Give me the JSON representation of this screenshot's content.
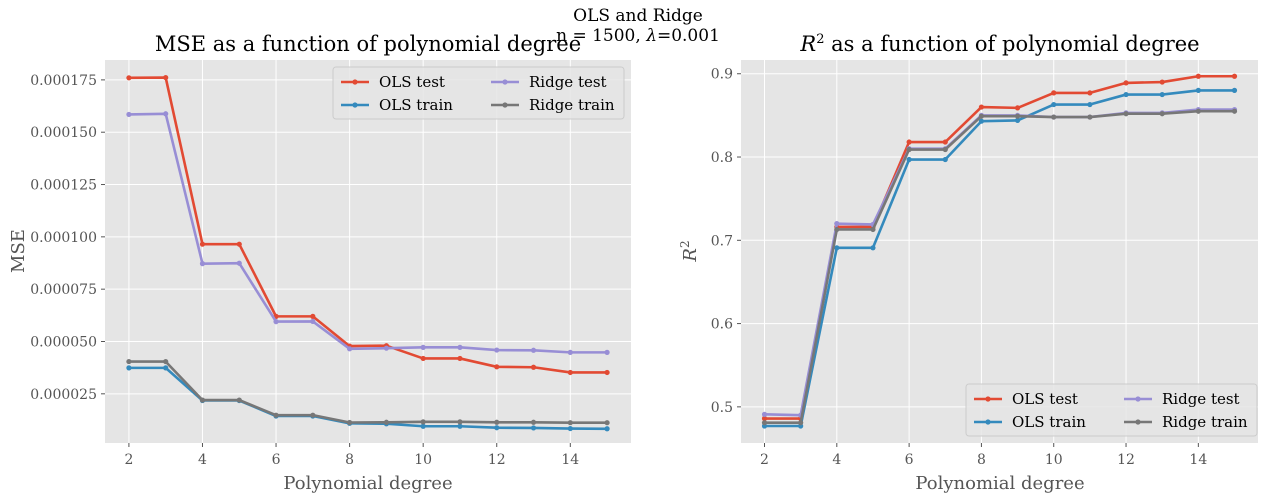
{
  "figure": {
    "suptitle": "OLS and Ridge",
    "subtitle_prefix": "n = 1500, ",
    "subtitle_lambda": "λ",
    "subtitle_value": "=0.001"
  },
  "chart_data": [
    {
      "type": "line",
      "title": "MSE as a function of polynomial degree",
      "xlabel": "Polynomial degree",
      "ylabel": "MSE",
      "xlim": [
        1.35,
        15.65
      ],
      "ylim": [
        1.5e-06,
        0.0001845
      ],
      "xticks": [
        2,
        4,
        6,
        8,
        10,
        12,
        14
      ],
      "yticks": [
        2.5e-05,
        5e-05,
        7.5e-05,
        0.0001,
        0.000125,
        0.00015,
        0.000175
      ],
      "ytick_labels": [
        "0.000025",
        "0.000050",
        "0.000075",
        "0.000100",
        "0.000125",
        "0.000150",
        "0.000175"
      ],
      "grid": true,
      "legend": {
        "placement": "top-right",
        "columns": 2
      },
      "x": [
        2,
        3,
        4,
        5,
        6,
        7,
        8,
        9,
        10,
        11,
        12,
        13,
        14,
        15
      ],
      "series": [
        {
          "name": "OLS test",
          "color": "#E24A33",
          "values": [
            0.000176,
            0.0001761,
            9.65e-05,
            9.65e-05,
            6.2e-05,
            6.2e-05,
            4.78e-05,
            4.8e-05,
            4.19e-05,
            4.19e-05,
            3.79e-05,
            3.77e-05,
            3.52e-05,
            3.52e-05
          ]
        },
        {
          "name": "OLS train",
          "color": "#348ABD",
          "values": [
            3.74e-05,
            3.74e-05,
            2.18e-05,
            2.18e-05,
            1.44e-05,
            1.44e-05,
            1.09e-05,
            1.07e-05,
            9.5e-06,
            9.5e-06,
            8.8e-06,
            8.7e-06,
            8.4e-06,
            8.3e-06
          ]
        },
        {
          "name": "Ridge test",
          "color": "#988ED5",
          "values": [
            0.0001585,
            0.0001588,
            8.72e-05,
            8.74e-05,
            5.95e-05,
            5.96e-05,
            4.65e-05,
            4.68e-05,
            4.72e-05,
            4.72e-05,
            4.59e-05,
            4.58e-05,
            4.48e-05,
            4.48e-05
          ]
        },
        {
          "name": "Ridge train",
          "color": "#777777",
          "values": [
            4.04e-05,
            4.04e-05,
            2.2e-05,
            2.2e-05,
            1.48e-05,
            1.48e-05,
            1.13e-05,
            1.14e-05,
            1.16e-05,
            1.16e-05,
            1.14e-05,
            1.14e-05,
            1.12e-05,
            1.12e-05
          ]
        }
      ]
    },
    {
      "type": "line",
      "title_main": "R",
      "title_sup": "2",
      "title_rest": " as a function of polynomial degree",
      "xlabel": "Polynomial degree",
      "ylabel_main": "R",
      "ylabel_sup": "2",
      "xlim": [
        1.35,
        15.65
      ],
      "ylim": [
        0.4566,
        0.9165
      ],
      "xticks": [
        2,
        4,
        6,
        8,
        10,
        12,
        14
      ],
      "yticks": [
        0.5,
        0.6,
        0.7,
        0.8,
        0.9
      ],
      "ytick_labels": [
        "0.5",
        "0.6",
        "0.7",
        "0.8",
        "0.9"
      ],
      "grid": true,
      "legend": {
        "placement": "bottom-right",
        "columns": 2
      },
      "x": [
        2,
        3,
        4,
        5,
        6,
        7,
        8,
        9,
        10,
        11,
        12,
        13,
        14,
        15
      ],
      "series": [
        {
          "name": "OLS test",
          "color": "#E24A33",
          "values": [
            0.486,
            0.486,
            0.716,
            0.716,
            0.818,
            0.818,
            0.86,
            0.859,
            0.877,
            0.877,
            0.889,
            0.89,
            0.897,
            0.897
          ]
        },
        {
          "name": "OLS train",
          "color": "#348ABD",
          "values": [
            0.477,
            0.477,
            0.691,
            0.691,
            0.797,
            0.797,
            0.843,
            0.844,
            0.863,
            0.863,
            0.875,
            0.875,
            0.88,
            0.88
          ]
        },
        {
          "name": "Ridge test",
          "color": "#988ED5",
          "values": [
            0.491,
            0.49,
            0.72,
            0.719,
            0.81,
            0.81,
            0.85,
            0.85,
            0.848,
            0.848,
            0.853,
            0.853,
            0.857,
            0.857
          ]
        },
        {
          "name": "Ridge train",
          "color": "#777777",
          "values": [
            0.481,
            0.481,
            0.713,
            0.713,
            0.809,
            0.809,
            0.849,
            0.849,
            0.848,
            0.848,
            0.852,
            0.852,
            0.855,
            0.855
          ]
        }
      ]
    }
  ]
}
